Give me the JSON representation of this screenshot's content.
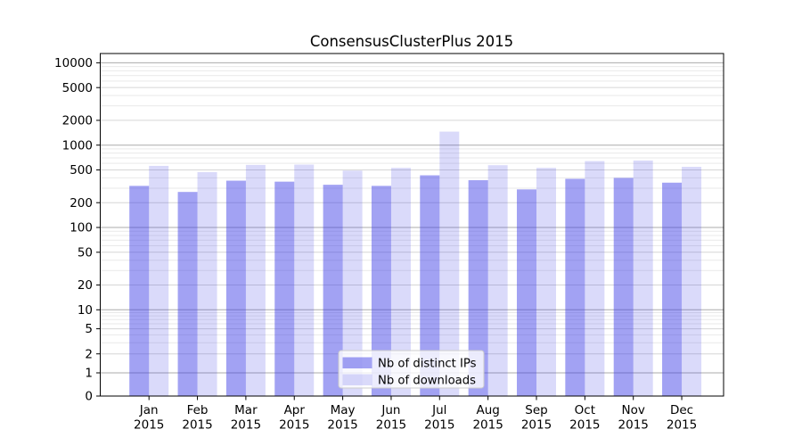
{
  "chart_data": {
    "type": "bar",
    "title": "ConsensusClusterPlus 2015",
    "categories": [
      "Jan 2015",
      "Feb 2015",
      "Mar 2015",
      "Apr 2015",
      "May 2015",
      "Jun 2015",
      "Jul 2015",
      "Aug 2015",
      "Sep 2015",
      "Oct 2015",
      "Nov 2015",
      "Dec 2015"
    ],
    "series": [
      {
        "name": "Nb of distinct IPs",
        "values": [
          320,
          270,
          370,
          360,
          330,
          320,
          430,
          375,
          290,
          390,
          400,
          350
        ],
        "fill": "rgba(60,60,230,0.48)"
      },
      {
        "name": "Nb of downloads",
        "values": [
          560,
          470,
          575,
          580,
          490,
          530,
          1460,
          570,
          530,
          640,
          650,
          545
        ],
        "fill": "rgba(60,60,230,0.19)"
      }
    ],
    "xlabel": "",
    "ylabel": "",
    "yscale": "symlog",
    "ylim": [
      0,
      12800
    ],
    "yticks": [
      0,
      1,
      2,
      5,
      10,
      20,
      50,
      100,
      200,
      500,
      1000,
      2000,
      5000,
      10000
    ],
    "grid": true,
    "legend_position": "lower-center",
    "colors": {
      "axis": "#000000",
      "grid_major": "#ababab",
      "grid_mid": "#d6d6d6",
      "grid_minor": "#e9e9e9",
      "legend_bg": "rgba(255,255,255,0.8)",
      "legend_border": "#cccccc",
      "text": "#000000"
    }
  }
}
